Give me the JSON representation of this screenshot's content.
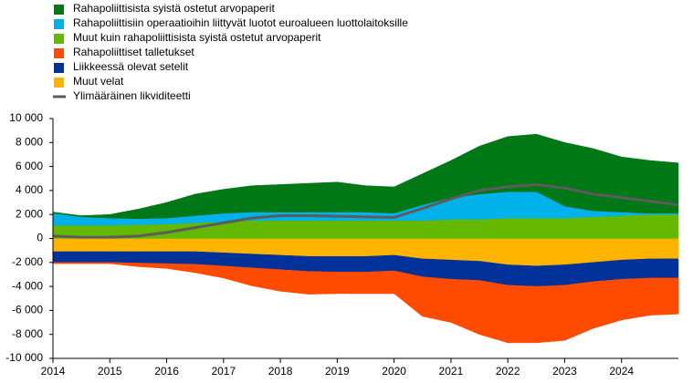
{
  "chart_data": {
    "type": "area",
    "x": [
      2014,
      2014.5,
      2015,
      2015.5,
      2016,
      2016.5,
      2017,
      2017.5,
      2018,
      2018.5,
      2019,
      2019.5,
      2020,
      2020.5,
      2021,
      2021.5,
      2022,
      2022.5,
      2023,
      2023.5,
      2024,
      2024.5,
      2025
    ],
    "xlim": [
      2014,
      2025
    ],
    "xticks": [
      2014,
      2015,
      2016,
      2017,
      2018,
      2019,
      2020,
      2021,
      2022,
      2023,
      2024
    ],
    "ylim": [
      -10000,
      10000
    ],
    "yticks": [
      {
        "value": -10000,
        "label": "-10 000"
      },
      {
        "value": -8000,
        "label": "-8 000"
      },
      {
        "value": -6000,
        "label": "-6 000"
      },
      {
        "value": -4000,
        "label": "-4 000"
      },
      {
        "value": -2000,
        "label": "-2 000"
      },
      0,
      {
        "value": 2000,
        "label": "2 000"
      },
      {
        "value": 4000,
        "label": "4 000"
      },
      {
        "value": 6000,
        "label": "6 000"
      },
      {
        "value": 8000,
        "label": "8 000"
      },
      {
        "value": 10000,
        "label": "10 000"
      }
    ],
    "grid": false,
    "legend": "top-left",
    "series": [
      {
        "name": "Rahapoliittisista syistä ostetut arvopaperit",
        "color": "#007816",
        "values": [
          100,
          100,
          300,
          800,
          1300,
          1800,
          2000,
          2200,
          2300,
          2400,
          2500,
          2200,
          2200,
          2600,
          3100,
          4000,
          4600,
          4800,
          5300,
          5200,
          4600,
          4400,
          4200
        ]
      },
      {
        "name": "Rahapoliittisiin operaatioihin liittyvät luotot euroalueen luottolaitoksille",
        "color": "#00b1ea",
        "values": [
          1000,
          700,
          600,
          500,
          500,
          600,
          700,
          700,
          700,
          700,
          700,
          700,
          600,
          1300,
          1800,
          2100,
          2200,
          2200,
          1000,
          500,
          300,
          100,
          100
        ]
      },
      {
        "name": "Muut kuin rahapoliittisista syistä ostetut arvopaperit",
        "color": "#65b800",
        "values": [
          1100,
          1100,
          1100,
          1150,
          1200,
          1300,
          1400,
          1500,
          1500,
          1500,
          1500,
          1500,
          1500,
          1500,
          1600,
          1600,
          1700,
          1700,
          1700,
          1800,
          1900,
          2000,
          2000
        ]
      },
      {
        "name": "Rahapoliittiset talletukset",
        "color": "#ff4b00",
        "values": [
          -100,
          -100,
          -100,
          -300,
          -400,
          -700,
          -1000,
          -1500,
          -1800,
          -1900,
          -1800,
          -1800,
          -1900,
          -3300,
          -3600,
          -4500,
          -4800,
          -4700,
          -4600,
          -3900,
          -3400,
          -3100,
          -3000
        ]
      },
      {
        "name": "Liikkeessä olevat setelit",
        "color": "#003299",
        "values": [
          -900,
          -900,
          -900,
          -950,
          -1000,
          -1050,
          -1100,
          -1150,
          -1200,
          -1250,
          -1300,
          -1300,
          -1300,
          -1500,
          -1600,
          -1600,
          -1700,
          -1700,
          -1700,
          -1600,
          -1600,
          -1600,
          -1600
        ]
      },
      {
        "name": "Muut velat",
        "color": "#ffb400",
        "values": [
          -1100,
          -1100,
          -1100,
          -1100,
          -1100,
          -1100,
          -1200,
          -1300,
          -1400,
          -1500,
          -1500,
          -1500,
          -1400,
          -1700,
          -1800,
          -1900,
          -2200,
          -2300,
          -2200,
          -2000,
          -1800,
          -1700,
          -1700
        ]
      },
      {
        "name": "Ylimääräinen likviditeetti",
        "color": "#5c5c5c",
        "type": "line",
        "values": [
          200,
          100,
          100,
          200,
          500,
          900,
          1300,
          1700,
          1900,
          1900,
          1850,
          1800,
          1750,
          2500,
          3300,
          4000,
          4300,
          4500,
          4200,
          3700,
          3400,
          3100,
          2800
        ]
      }
    ]
  }
}
